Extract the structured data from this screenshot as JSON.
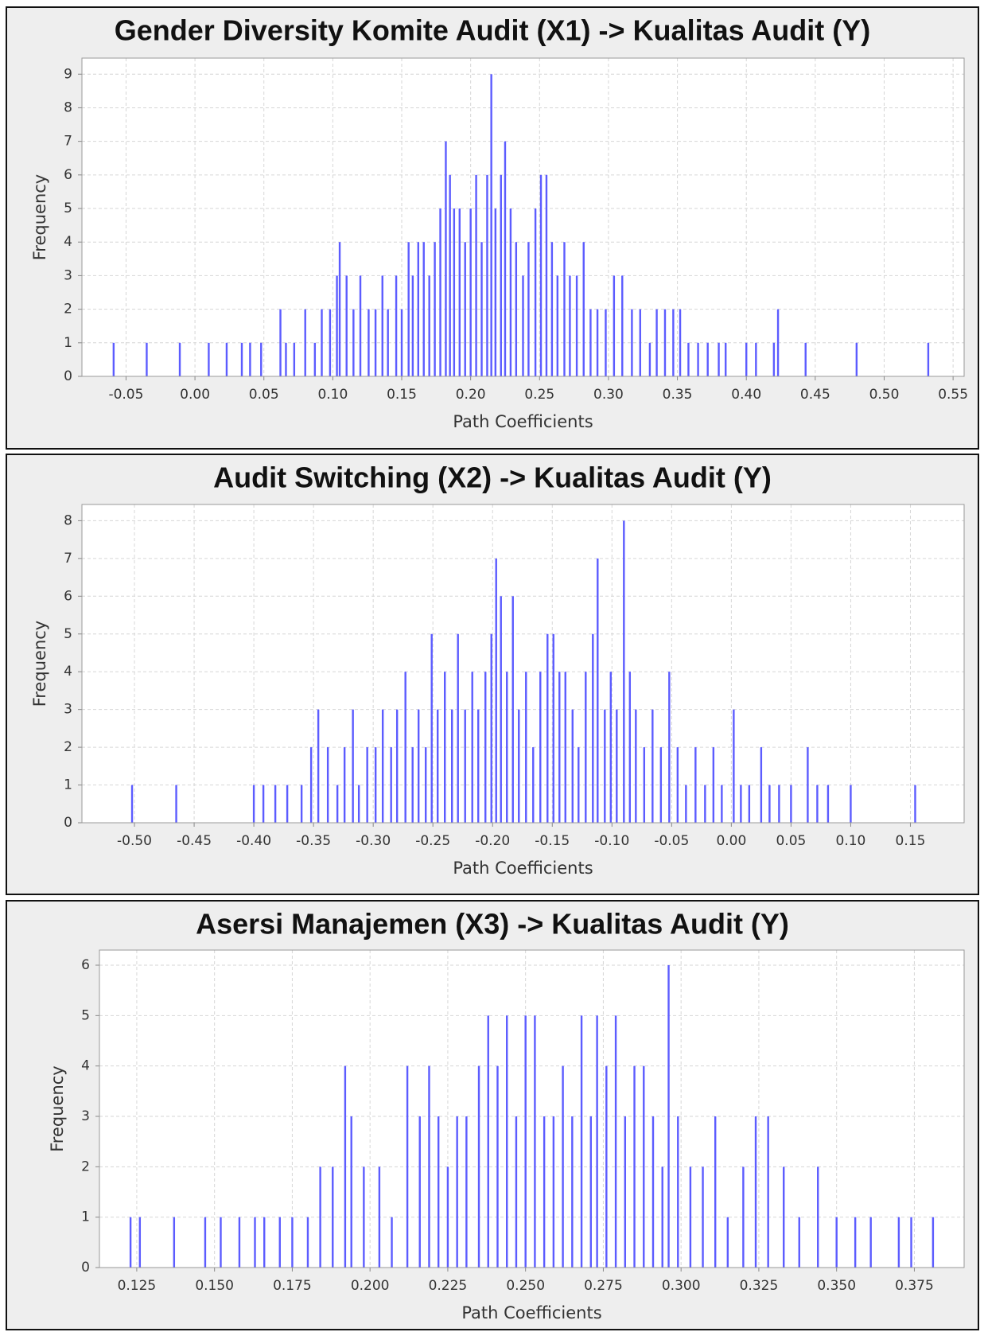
{
  "chart_data": [
    {
      "type": "bar",
      "title": "Gender Diversity Komite Audit (X1) -> Kualitas Audit (Y)",
      "xlabel": "Path Coefficients",
      "ylabel": "Frequency",
      "color": "#5c5cff",
      "grid": true,
      "xlim": [
        -0.082,
        0.558
      ],
      "ylim": [
        0,
        9.48
      ],
      "xticks": [
        -0.05,
        {
          "value": 0,
          "label": "0.00"
        },
        0.05,
        {
          "value": 0.1,
          "label": "0.10"
        },
        0.15,
        {
          "value": 0.2,
          "label": "0.20"
        },
        0.25,
        {
          "value": 0.3,
          "label": "0.30"
        },
        0.35,
        {
          "value": 0.4,
          "label": "0.40"
        },
        0.45,
        {
          "value": 0.5,
          "label": "0.50"
        },
        0.55
      ],
      "yticks": [
        0,
        1,
        2,
        3,
        4,
        5,
        6,
        7,
        8,
        9
      ],
      "x": [
        -0.059,
        -0.035,
        -0.011,
        0.01,
        0.023,
        0.034,
        0.04,
        0.048,
        0.062,
        0.066,
        0.072,
        0.08,
        0.087,
        0.092,
        0.098,
        0.103,
        0.105,
        0.11,
        0.115,
        0.12,
        0.126,
        0.131,
        0.136,
        0.14,
        0.146,
        0.15,
        0.155,
        0.158,
        0.162,
        0.166,
        0.17,
        0.174,
        0.178,
        0.182,
        0.185,
        0.188,
        0.192,
        0.196,
        0.2,
        0.204,
        0.208,
        0.212,
        0.215,
        0.218,
        0.222,
        0.225,
        0.229,
        0.233,
        0.238,
        0.242,
        0.247,
        0.251,
        0.255,
        0.259,
        0.263,
        0.268,
        0.272,
        0.277,
        0.282,
        0.287,
        0.292,
        0.298,
        0.304,
        0.31,
        0.317,
        0.323,
        0.33,
        0.335,
        0.341,
        0.347,
        0.352,
        0.358,
        0.365,
        0.372,
        0.38,
        0.385,
        0.4,
        0.407,
        0.42,
        0.423,
        0.443,
        0.48,
        0.532
      ],
      "values": [
        1,
        1,
        1,
        1,
        1,
        1,
        1,
        1,
        2,
        1,
        1,
        2,
        1,
        2,
        2,
        3,
        4,
        3,
        2,
        3,
        2,
        2,
        3,
        2,
        3,
        2,
        4,
        3,
        4,
        4,
        3,
        4,
        5,
        7,
        6,
        5,
        5,
        4,
        5,
        6,
        4,
        6,
        9,
        5,
        6,
        7,
        5,
        4,
        3,
        4,
        5,
        6,
        6,
        4,
        3,
        4,
        3,
        3,
        4,
        2,
        2,
        2,
        3,
        3,
        2,
        2,
        1,
        2,
        2,
        2,
        2,
        1,
        1,
        1,
        1,
        1,
        1,
        1,
        1,
        2,
        1,
        1,
        1
      ]
    },
    {
      "type": "bar",
      "title": "Audit Switching (X2) -> Kualitas Audit (Y)",
      "xlabel": "Path Coefficients",
      "ylabel": "Frequency",
      "color": "#5c5cff",
      "grid": true,
      "xlim": [
        -0.544,
        0.195
      ],
      "ylim": [
        0,
        8.43
      ],
      "xticks": [
        {
          "value": -0.5,
          "label": "-0.50"
        },
        -0.45,
        {
          "value": -0.4,
          "label": "-0.40"
        },
        -0.35,
        {
          "value": -0.3,
          "label": "-0.30"
        },
        -0.25,
        {
          "value": -0.2,
          "label": "-0.20"
        },
        -0.15,
        {
          "value": -0.1,
          "label": "-0.10"
        },
        -0.05,
        {
          "value": 0,
          "label": "0.00"
        },
        0.05,
        {
          "value": 0.1,
          "label": "0.10"
        },
        0.15
      ],
      "yticks": [
        0,
        1,
        2,
        3,
        4,
        5,
        6,
        7,
        8
      ],
      "x": [
        -0.502,
        -0.465,
        -0.4,
        -0.392,
        -0.382,
        -0.372,
        -0.36,
        -0.352,
        -0.346,
        -0.338,
        -0.33,
        -0.324,
        -0.317,
        -0.312,
        -0.305,
        -0.298,
        -0.292,
        -0.285,
        -0.28,
        -0.273,
        -0.267,
        -0.262,
        -0.256,
        -0.251,
        -0.246,
        -0.24,
        -0.234,
        -0.229,
        -0.223,
        -0.217,
        -0.212,
        -0.206,
        -0.201,
        -0.197,
        -0.193,
        -0.188,
        -0.183,
        -0.178,
        -0.172,
        -0.166,
        -0.16,
        -0.154,
        -0.149,
        -0.144,
        -0.139,
        -0.133,
        -0.128,
        -0.122,
        -0.116,
        -0.112,
        -0.106,
        -0.101,
        -0.096,
        -0.09,
        -0.085,
        -0.08,
        -0.073,
        -0.066,
        -0.059,
        -0.052,
        -0.045,
        -0.038,
        -0.03,
        -0.022,
        -0.015,
        -0.008,
        0.002,
        0.008,
        0.015,
        0.025,
        0.032,
        0.04,
        0.05,
        0.064,
        0.072,
        0.081,
        0.1,
        0.154
      ],
      "values": [
        1,
        1,
        1,
        1,
        1,
        1,
        1,
        2,
        3,
        2,
        1,
        2,
        3,
        1,
        2,
        2,
        3,
        2,
        3,
        4,
        2,
        3,
        2,
        5,
        3,
        4,
        3,
        5,
        3,
        4,
        3,
        4,
        5,
        7,
        6,
        4,
        6,
        3,
        4,
        2,
        4,
        5,
        5,
        4,
        4,
        3,
        2,
        4,
        5,
        7,
        3,
        4,
        3,
        8,
        4,
        3,
        2,
        3,
        2,
        4,
        2,
        1,
        2,
        1,
        2,
        1,
        3,
        1,
        1,
        2,
        1,
        1,
        1,
        2,
        1,
        1,
        1,
        1
      ]
    },
    {
      "type": "bar",
      "title": "Asersi Manajemen (X3) -> Kualitas Audit (Y)",
      "xlabel": "Path Coefficients",
      "ylabel": "Frequency",
      "color": "#5c5cff",
      "grid": true,
      "xlim": [
        0.113,
        0.391
      ],
      "ylim": [
        0,
        6.3
      ],
      "xticks": [
        0.125,
        {
          "value": 0.15,
          "label": "0.150"
        },
        0.175,
        {
          "value": 0.2,
          "label": "0.200"
        },
        0.225,
        {
          "value": 0.25,
          "label": "0.250"
        },
        0.275,
        {
          "value": 0.3,
          "label": "0.300"
        },
        0.325,
        {
          "value": 0.35,
          "label": "0.350"
        },
        0.375
      ],
      "yticks": [
        0,
        1,
        2,
        3,
        4,
        5,
        6
      ],
      "x": [
        0.123,
        0.126,
        0.137,
        0.147,
        0.152,
        0.158,
        0.163,
        0.166,
        0.171,
        0.175,
        0.18,
        0.184,
        0.188,
        0.192,
        0.194,
        0.198,
        0.203,
        0.207,
        0.212,
        0.216,
        0.219,
        0.222,
        0.225,
        0.228,
        0.231,
        0.235,
        0.238,
        0.241,
        0.244,
        0.247,
        0.25,
        0.253,
        0.256,
        0.259,
        0.262,
        0.265,
        0.268,
        0.271,
        0.273,
        0.276,
        0.279,
        0.282,
        0.285,
        0.288,
        0.291,
        0.294,
        0.296,
        0.299,
        0.303,
        0.307,
        0.311,
        0.315,
        0.32,
        0.324,
        0.328,
        0.333,
        0.338,
        0.344,
        0.35,
        0.356,
        0.361,
        0.37,
        0.374,
        0.381
      ],
      "values": [
        1,
        1,
        1,
        1,
        1,
        1,
        1,
        1,
        1,
        1,
        1,
        2,
        2,
        4,
        3,
        2,
        2,
        1,
        4,
        3,
        4,
        3,
        2,
        3,
        3,
        4,
        5,
        4,
        5,
        3,
        5,
        5,
        3,
        3,
        4,
        3,
        5,
        3,
        5,
        4,
        5,
        3,
        4,
        4,
        3,
        2,
        6,
        3,
        2,
        2,
        3,
        1,
        2,
        3,
        3,
        2,
        1,
        2,
        1,
        1,
        1,
        1,
        1,
        1
      ]
    }
  ]
}
